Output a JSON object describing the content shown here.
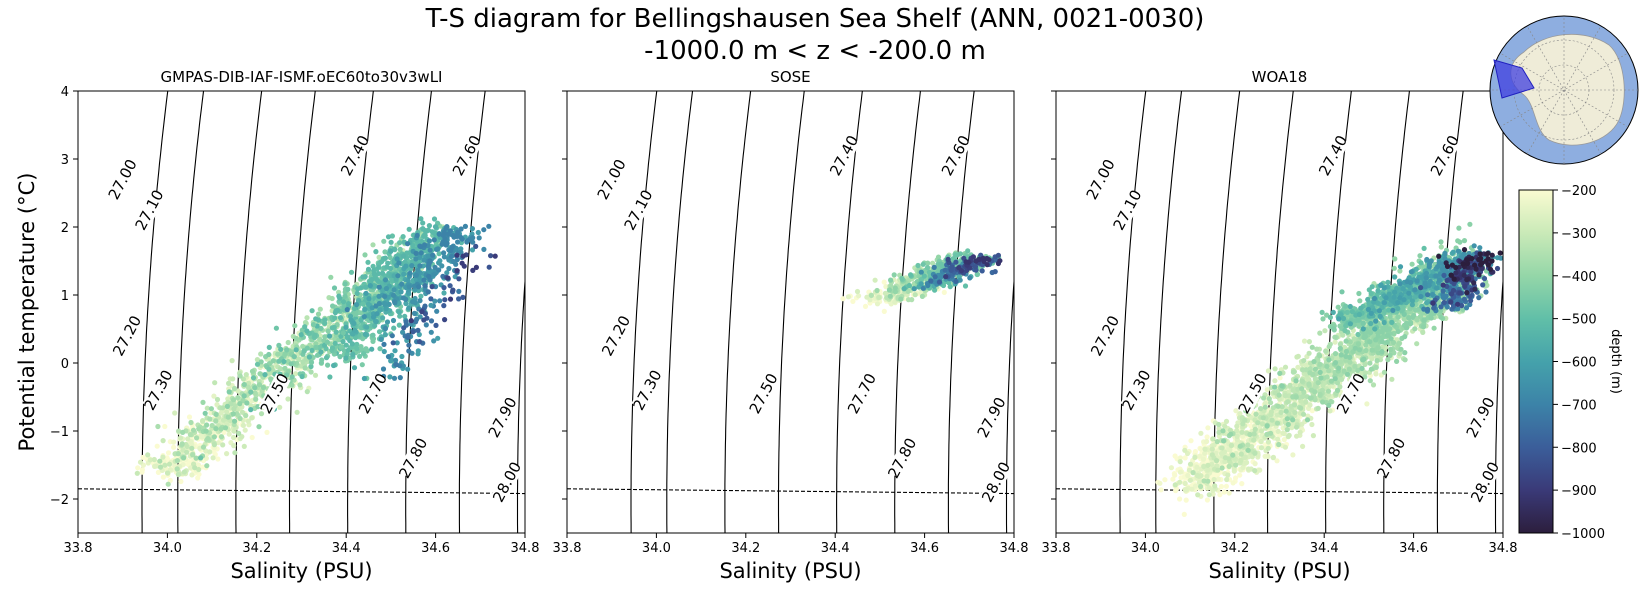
{
  "chart_data": {
    "type": "scatter",
    "title_line1": "T-S diagram for Bellingshausen Sea Shelf (ANN, 0021-0030)",
    "title_line2": "-1000.0 m < z < -200.0 m",
    "xlabel": "Salinity (PSU)",
    "ylabel": "Potential temperature (°C)",
    "xlim": [
      33.8,
      34.8
    ],
    "ylim": [
      -2.5,
      4
    ],
    "xticks": [
      "33.8",
      "34.0",
      "34.2",
      "34.4",
      "34.6",
      "34.8"
    ],
    "yticks": [
      "4",
      "3",
      "2",
      "1",
      "0",
      "−1",
      "−2"
    ],
    "freezing_line": {
      "s0": 33.8,
      "t0": -1.85,
      "s1": 34.8,
      "t1": -1.92
    },
    "density_contours": [
      {
        "level": "27.00",
        "s_at_t0": 33.95,
        "label_at": [
          33.9,
          2.7
        ]
      },
      {
        "level": "27.10",
        "s_at_t0": 34.03,
        "label_at": [
          33.96,
          2.25
        ]
      },
      {
        "level": "27.20",
        "s_at_t0": 34.16,
        "label_at": [
          33.91,
          0.4
        ]
      },
      {
        "level": "27.30",
        "s_at_t0": 34.28,
        "label_at": [
          33.98,
          -0.4
        ]
      },
      {
        "level": "27.40",
        "s_at_t0": 34.41,
        "label_at": [
          34.42,
          3.05
        ]
      },
      {
        "level": "27.50",
        "s_at_t0": 34.54,
        "label_at": [
          34.24,
          -0.45
        ]
      },
      {
        "level": "27.60",
        "s_at_t0": 34.66,
        "label_at": [
          34.67,
          3.05
        ]
      },
      {
        "level": "27.70",
        "s_at_t0": 34.79,
        "label_at": [
          34.46,
          -0.45
        ]
      },
      {
        "level": "27.80",
        "s_at_t0": 34.91,
        "label_at": [
          34.55,
          -1.4
        ]
      },
      {
        "level": "27.90",
        "s_at_t0": 35.04,
        "label_at": [
          34.75,
          -0.8
        ]
      },
      {
        "level": "28.00",
        "s_at_t0": 35.16,
        "label_at": [
          34.76,
          -1.75
        ]
      }
    ],
    "panels": [
      {
        "name": "GMPAS-DIB-IAF-ISMF.oEC60to30v3wLI",
        "clusters": [
          {
            "s0": 34.0,
            "t0": -1.6,
            "s1": 34.6,
            "t1": 1.9,
            "spread": 0.38,
            "n": 1400,
            "d0": -200,
            "d1": -520
          },
          {
            "s0": 34.38,
            "t0": 0.1,
            "s1": 34.66,
            "t1": 1.95,
            "spread": 0.35,
            "n": 500,
            "d0": -450,
            "d1": -700
          },
          {
            "s0": 34.48,
            "t0": -0.2,
            "s1": 34.7,
            "t1": 1.7,
            "spread": 0.3,
            "n": 110,
            "d0": -600,
            "d1": -900
          }
        ]
      },
      {
        "name": "SOSE",
        "clusters": [
          {
            "s0": 34.5,
            "t0": 0.9,
            "s1": 34.7,
            "t1": 1.55,
            "spread": 0.18,
            "n": 420,
            "d0": -200,
            "d1": -480
          },
          {
            "s0": 34.6,
            "t0": 1.1,
            "s1": 34.73,
            "t1": 1.55,
            "spread": 0.12,
            "n": 160,
            "d0": -500,
            "d1": -920
          }
        ]
      },
      {
        "name": "WOA18",
        "clusters": [
          {
            "s0": 34.1,
            "t0": -1.8,
            "s1": 34.72,
            "t1": 1.5,
            "spread": 0.5,
            "n": 2200,
            "d0": -200,
            "d1": -420
          },
          {
            "s0": 34.45,
            "t0": 0.6,
            "s1": 34.74,
            "t1": 1.55,
            "spread": 0.3,
            "n": 700,
            "d0": -420,
            "d1": -650
          },
          {
            "s0": 34.68,
            "t0": 0.8,
            "s1": 34.74,
            "t1": 1.6,
            "spread": 0.08,
            "n": 220,
            "d0": -700,
            "d1": -1000
          }
        ]
      }
    ],
    "colorbar": {
      "label": "depth (m)",
      "min": -1000,
      "max": -200,
      "ticks": [
        "−200",
        "−300",
        "−400",
        "−500",
        "−600",
        "−700",
        "−800",
        "−900",
        "−1000"
      ],
      "colormap": [
        "#2c1e3d",
        "#3a3a78",
        "#3b5e9a",
        "#3c83a8",
        "#45a2ab",
        "#61bfa8",
        "#94d6a8",
        "#caeab8",
        "#fafbd1"
      ]
    },
    "inset_map": {
      "ocean_color": "#8eaee0",
      "land_color": "#efecd8",
      "region_color": "#4040e0"
    }
  }
}
